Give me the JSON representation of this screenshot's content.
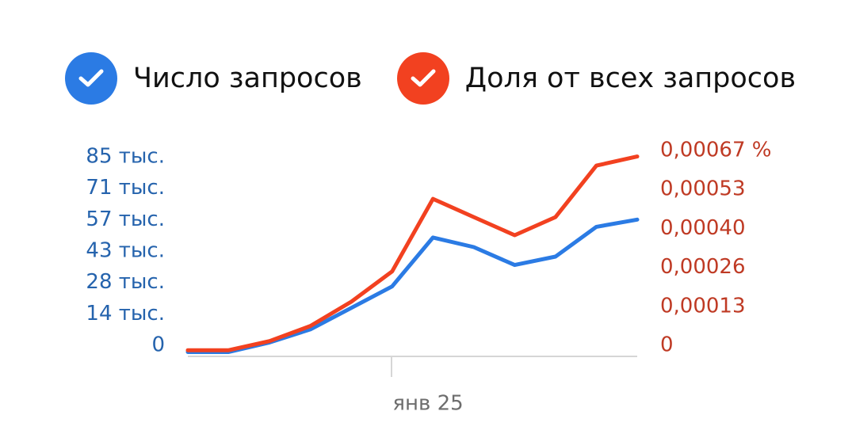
{
  "legend": {
    "queries_label": "Число запросов",
    "share_label": "Доля от всех запросов",
    "queries_color": "#2b7be4",
    "share_color": "#f24120",
    "icon": "check-icon"
  },
  "chart_data": {
    "type": "line",
    "x_ticks": [
      "янв 25"
    ],
    "y_left_ticks": [
      "85 тыс.",
      "71 тыс.",
      "57 тыс.",
      "43 тыс.",
      "28 тыс.",
      "14 тыс.",
      "0"
    ],
    "y_right_ticks": [
      "0,00067 %",
      "0,00053",
      "0,00040",
      "0,00026",
      "0,00013",
      "0"
    ],
    "y_left_range": [
      0,
      85000
    ],
    "y_right_range": [
      0,
      0.00067
    ],
    "grid": false,
    "series": [
      {
        "name": "Число запросов",
        "axis": "left",
        "color": "#2b7be4",
        "values": [
          500,
          500,
          4500,
          10000,
          19000,
          28000,
          48500,
          44500,
          37000,
          40500,
          53000,
          56000
        ]
      },
      {
        "name": "Доля от всех запросов",
        "axis": "right",
        "color": "#f24120",
        "values": [
          1e-05,
          1e-05,
          4e-05,
          9e-05,
          0.00017,
          0.00027,
          0.00051,
          0.00045,
          0.00039,
          0.00045,
          0.00062,
          0.00065
        ]
      }
    ]
  }
}
